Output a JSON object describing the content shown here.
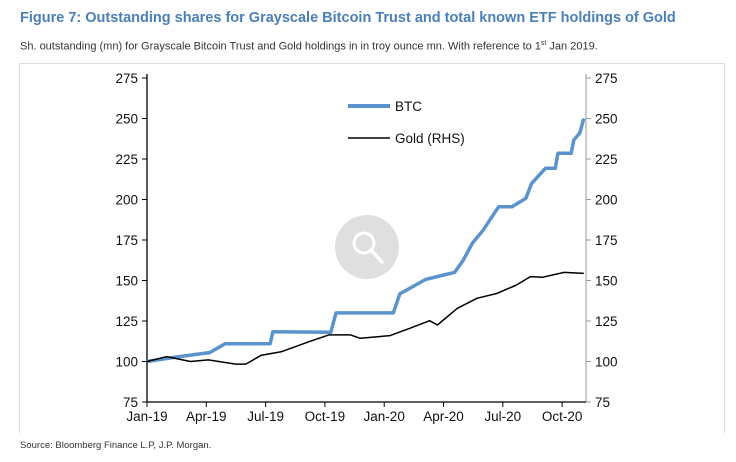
{
  "header": {
    "title": "Figure 7: Outstanding shares for Grayscale Bitcoin Trust and total known ETF holdings of Gold",
    "subtitle_pre": "Sh. outstanding (mn) for Grayscale Bitcoin Trust and Gold holdings in in troy ounce mn. With reference to 1",
    "subtitle_sup": "st",
    "subtitle_post": " Jan 2019."
  },
  "source": "Source: Bloomberg Finance L.P, J.P. Morgan.",
  "colors": {
    "title": "#4a7fb8",
    "btc": "#5b93cc",
    "gold": "#000000"
  },
  "zoom_icon": "magnifier-icon",
  "chart_data": {
    "type": "line",
    "title": "",
    "xlabel": "",
    "ylabel": "",
    "ylim": [
      75,
      275
    ],
    "y2lim": [
      75,
      275
    ],
    "yticks": [
      75,
      100,
      125,
      150,
      175,
      200,
      225,
      250,
      275
    ],
    "xticks": [
      "Jan-19",
      "Apr-19",
      "Jul-19",
      "Oct-19",
      "Jan-20",
      "Apr-20",
      "Jul-20",
      "Oct-20"
    ],
    "grid": false,
    "legend": "top-center",
    "series": [
      {
        "name": "BTC",
        "axis": "left",
        "color": "#5b93cc",
        "points": [
          [
            "2019-01-01",
            100
          ],
          [
            "2019-02-20",
            103
          ],
          [
            "2019-04-06",
            105.5
          ],
          [
            "2019-04-30",
            111
          ],
          [
            "2019-07-08",
            111
          ],
          [
            "2019-07-12",
            118.4
          ],
          [
            "2019-10-10",
            118
          ],
          [
            "2019-10-18",
            130
          ],
          [
            "2020-01-15",
            130
          ],
          [
            "2020-01-25",
            141.7
          ],
          [
            "2020-03-04",
            150.7
          ],
          [
            "2020-04-01",
            153.4
          ],
          [
            "2020-04-18",
            155
          ],
          [
            "2020-05-01",
            162.6
          ],
          [
            "2020-05-15",
            173
          ],
          [
            "2020-06-01",
            181
          ],
          [
            "2020-06-25",
            195.5
          ],
          [
            "2020-07-15",
            195.5
          ],
          [
            "2020-08-06",
            200.7
          ],
          [
            "2020-08-15",
            210
          ],
          [
            "2020-09-06",
            219.3
          ],
          [
            "2020-09-21",
            219.3
          ],
          [
            "2020-09-25",
            228.5
          ],
          [
            "2020-10-15",
            228.5
          ],
          [
            "2020-10-19",
            236.7
          ],
          [
            "2020-10-28",
            241
          ],
          [
            "2020-11-04",
            250
          ]
        ]
      },
      {
        "name": "Gold (RHS)",
        "axis": "right",
        "color": "#000000",
        "points": [
          [
            "2019-01-01",
            100
          ],
          [
            "2019-02-01",
            103
          ],
          [
            "2019-03-07",
            100
          ],
          [
            "2019-04-04",
            101
          ],
          [
            "2019-05-16",
            98.4
          ],
          [
            "2019-06-01",
            98.4
          ],
          [
            "2019-06-25",
            103.9
          ],
          [
            "2019-07-25",
            106
          ],
          [
            "2019-09-07",
            112.2
          ],
          [
            "2019-10-07",
            116.4
          ],
          [
            "2019-11-10",
            116.4
          ],
          [
            "2019-11-25",
            114.3
          ],
          [
            "2020-01-10",
            116
          ],
          [
            "2020-02-10",
            120.5
          ],
          [
            "2020-03-10",
            125.2
          ],
          [
            "2020-03-22",
            122.5
          ],
          [
            "2020-04-22",
            132.8
          ],
          [
            "2020-05-22",
            139
          ],
          [
            "2020-06-22",
            142
          ],
          [
            "2020-07-22",
            147.2
          ],
          [
            "2020-08-13",
            152.4
          ],
          [
            "2020-09-01",
            152
          ],
          [
            "2020-10-04",
            155
          ],
          [
            "2020-11-04",
            154.4
          ]
        ]
      }
    ]
  }
}
